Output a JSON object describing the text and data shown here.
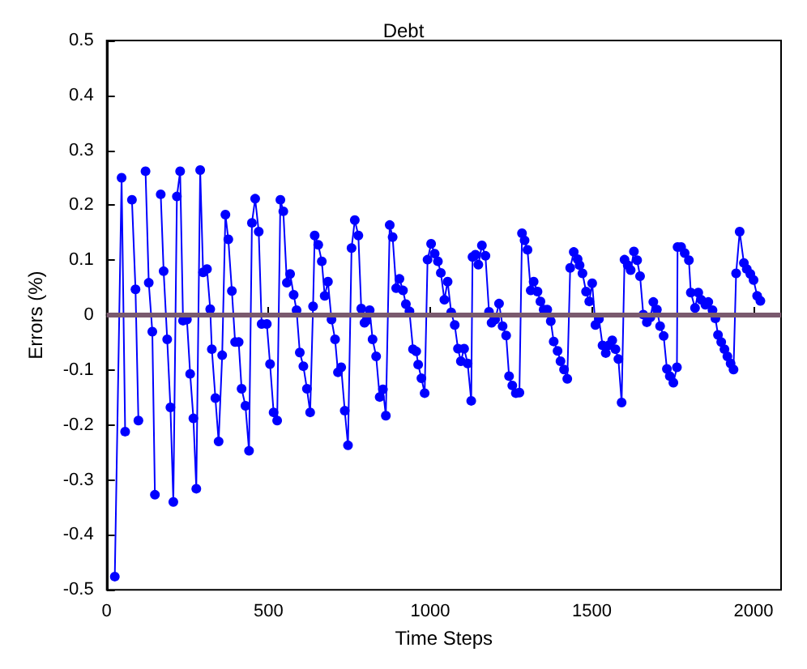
{
  "chart_data": {
    "type": "line",
    "title": "Debt",
    "xlabel": "Time Steps",
    "ylabel": "Errors (%)",
    "xlim": [
      0,
      2085
    ],
    "xticks": [
      0,
      500,
      1000,
      1500,
      2000
    ],
    "ylim": [
      -0.5,
      0.5
    ],
    "yticks": [
      -0.5,
      -0.4,
      -0.3,
      -0.2,
      -0.1,
      0,
      0.1,
      0.2,
      0.3,
      0.4,
      0.5
    ],
    "grid": false,
    "marker": "circle",
    "line_style": "solid",
    "ref_lines": [
      {
        "axis": "y",
        "value": 0,
        "color": "#7a5a6e"
      }
    ],
    "series": [
      {
        "color": "#0000ff",
        "x": [
          25,
          46,
          57,
          67,
          78,
          89,
          98,
          108,
          120,
          130,
          141,
          149,
          158,
          167,
          176,
          187,
          197,
          206,
          217,
          227,
          236,
          248,
          258,
          268,
          277,
          289,
          298,
          310,
          320,
          325,
          336,
          346,
          357,
          367,
          376,
          387,
          397,
          408,
          417,
          429,
          440,
          449,
          459,
          470,
          479,
          495,
          505,
          516,
          527,
          537,
          546,
          557,
          567,
          578,
          587,
          597,
          608,
          619,
          629,
          638,
          643,
          654,
          665,
          674,
          684,
          695,
          706,
          715,
          725,
          736,
          746,
          757,
          767,
          778,
          787,
          797,
          803,
          813,
          822,
          833,
          844,
          854,
          863,
          875,
          884,
          895,
          905,
          916,
          925,
          936,
          947,
          957,
          963,
          973,
          983,
          992,
          1003,
          1014,
          1024,
          1033,
          1044,
          1054,
          1065,
          1076,
          1086,
          1095,
          1105,
          1116,
          1127,
          1131,
          1140,
          1149,
          1160,
          1171,
          1182,
          1190,
          1201,
          1213,
          1224,
          1235,
          1244,
          1254,
          1265,
          1276,
          1284,
          1292,
          1301,
          1311,
          1320,
          1332,
          1341,
          1351,
          1362,
          1373,
          1382,
          1394,
          1403,
          1414,
          1424,
          1433,
          1444,
          1456,
          1462,
          1471,
          1482,
          1492,
          1501,
          1511,
          1522,
          1533,
          1543,
          1552,
          1563,
          1573,
          1582,
          1592,
          1601,
          1611,
          1620,
          1630,
          1640,
          1649,
          1659,
          1670,
          1681,
          1690,
          1701,
          1711,
          1722,
          1732,
          1741,
          1752,
          1763,
          1765,
          1776,
          1787,
          1800,
          1806,
          1819,
          1829,
          1838,
          1851,
          1860,
          1873,
          1882,
          1890,
          1900,
          1910,
          1919,
          1929,
          1938,
          1946,
          1957,
          1970,
          1979,
          1990,
          2000,
          2011,
          2021
        ],
        "values": [
          -0.476,
          0.25,
          -0.212,
          null,
          0.21,
          0.047,
          -0.192,
          null,
          0.262,
          0.059,
          -0.03,
          -0.327,
          null,
          0.22,
          0.08,
          -0.044,
          -0.168,
          -0.34,
          0.216,
          0.262,
          -0.01,
          -0.008,
          -0.107,
          -0.188,
          -0.316,
          0.264,
          0.078,
          0.084,
          0.011,
          -0.062,
          -0.151,
          -0.23,
          -0.073,
          0.183,
          0.138,
          0.044,
          -0.049,
          -0.049,
          -0.134,
          -0.165,
          -0.247,
          0.168,
          0.212,
          0.152,
          -0.016,
          -0.016,
          -0.089,
          -0.177,
          -0.192,
          0.21,
          0.189,
          0.059,
          0.075,
          0.037,
          0.009,
          -0.068,
          -0.093,
          -0.134,
          -0.177,
          0.016,
          0.145,
          0.128,
          0.098,
          0.035,
          0.061,
          -0.008,
          -0.044,
          -0.104,
          -0.095,
          -0.174,
          -0.237,
          0.122,
          0.173,
          0.145,
          0.012,
          -0.014,
          -0.01,
          0.009,
          -0.044,
          -0.075,
          -0.149,
          -0.135,
          -0.183,
          0.164,
          0.142,
          0.049,
          0.066,
          0.045,
          0.02,
          0.007,
          -0.062,
          -0.066,
          -0.09,
          -0.115,
          -0.142,
          0.101,
          0.13,
          0.112,
          0.098,
          0.077,
          0.028,
          0.061,
          0.005,
          -0.018,
          -0.061,
          -0.084,
          -0.061,
          -0.088,
          -0.156,
          0.106,
          0.11,
          0.092,
          0.127,
          0.108,
          0.006,
          -0.014,
          -0.008,
          0.021,
          -0.02,
          -0.037,
          -0.111,
          -0.128,
          -0.142,
          -0.141,
          0.149,
          0.136,
          0.119,
          0.045,
          0.061,
          0.043,
          0.025,
          0.01,
          0.01,
          -0.011,
          -0.048,
          -0.065,
          -0.084,
          -0.099,
          -0.116,
          0.086,
          0.115,
          0.102,
          0.091,
          0.076,
          0.043,
          0.025,
          0.058,
          -0.018,
          -0.007,
          -0.055,
          -0.069,
          -0.055,
          -0.046,
          -0.062,
          -0.08,
          -0.159,
          0.101,
          0.091,
          0.082,
          0.116,
          0.1,
          0.071,
          0.001,
          -0.013,
          -0.004,
          0.024,
          0.01,
          -0.02,
          -0.038,
          -0.098,
          -0.111,
          -0.123,
          -0.095,
          0.124,
          0.124,
          0.113,
          0.1,
          0.041,
          0.013,
          0.041,
          0.028,
          0.019,
          0.024,
          0.009,
          -0.006,
          -0.036,
          -0.049,
          -0.062,
          -0.075,
          -0.088,
          -0.099,
          0.076,
          0.152,
          0.095,
          0.084,
          0.075,
          0.064,
          0.035,
          0.026
        ]
      }
    ]
  }
}
